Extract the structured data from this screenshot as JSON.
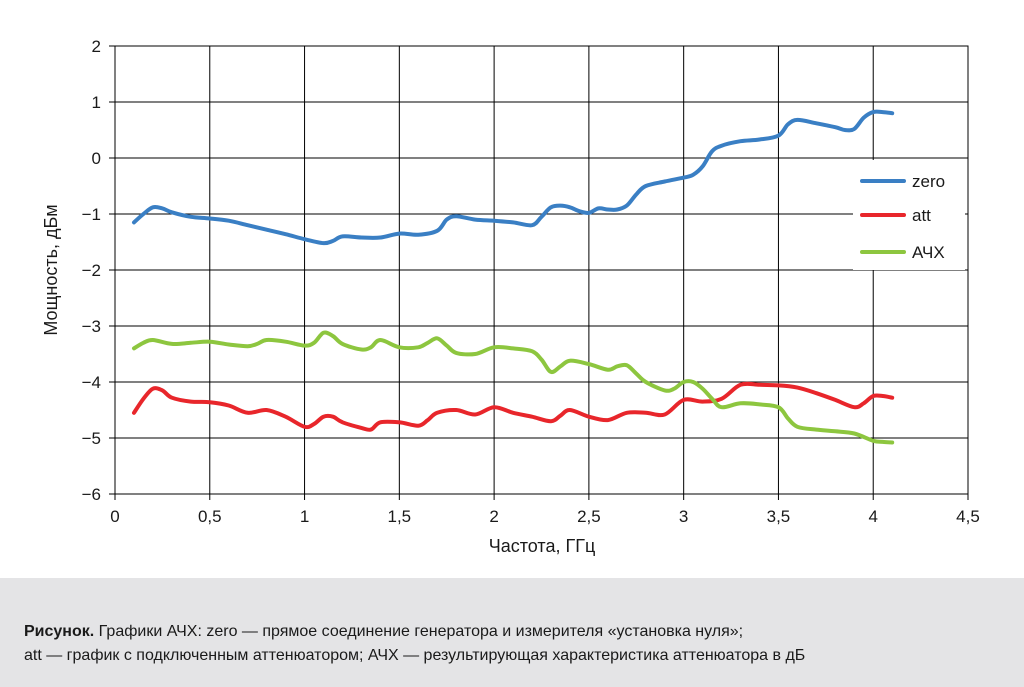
{
  "chart_data": {
    "type": "line",
    "title": "",
    "xlabel": "Частота, ГГц",
    "ylabel": "Мощность, дБм",
    "xlim": [
      0,
      4.5
    ],
    "ylim": [
      -6,
      2
    ],
    "x_ticks": [
      0,
      0.5,
      1,
      1.5,
      2,
      2.5,
      3,
      3.5,
      4,
      4.5
    ],
    "x_tick_labels": [
      "0",
      "0,5",
      "1",
      "1,5",
      "2",
      "2,5",
      "3",
      "3,5",
      "4",
      "4,5"
    ],
    "y_ticks": [
      2,
      1,
      0,
      -1,
      -2,
      -3,
      -4,
      -5,
      -6
    ],
    "y_tick_labels": [
      "2",
      "1",
      "0",
      "−1",
      "−2",
      "−3",
      "−4",
      "−5",
      "−6"
    ],
    "grid": true,
    "legend_position": "right",
    "series": [
      {
        "name": "zero",
        "color": "#3a7fc4",
        "points": [
          [
            0.1,
            -1.15
          ],
          [
            0.15,
            -1.0
          ],
          [
            0.2,
            -0.88
          ],
          [
            0.25,
            -0.9
          ],
          [
            0.3,
            -0.97
          ],
          [
            0.4,
            -1.05
          ],
          [
            0.5,
            -1.08
          ],
          [
            0.6,
            -1.12
          ],
          [
            0.7,
            -1.2
          ],
          [
            0.8,
            -1.28
          ],
          [
            0.9,
            -1.36
          ],
          [
            1.0,
            -1.45
          ],
          [
            1.1,
            -1.52
          ],
          [
            1.15,
            -1.48
          ],
          [
            1.2,
            -1.4
          ],
          [
            1.3,
            -1.42
          ],
          [
            1.4,
            -1.42
          ],
          [
            1.5,
            -1.35
          ],
          [
            1.6,
            -1.37
          ],
          [
            1.7,
            -1.3
          ],
          [
            1.75,
            -1.1
          ],
          [
            1.8,
            -1.04
          ],
          [
            1.9,
            -1.1
          ],
          [
            2.0,
            -1.12
          ],
          [
            2.1,
            -1.15
          ],
          [
            2.2,
            -1.2
          ],
          [
            2.25,
            -1.05
          ],
          [
            2.3,
            -0.88
          ],
          [
            2.35,
            -0.85
          ],
          [
            2.4,
            -0.88
          ],
          [
            2.45,
            -0.95
          ],
          [
            2.5,
            -0.98
          ],
          [
            2.55,
            -0.9
          ],
          [
            2.6,
            -0.92
          ],
          [
            2.65,
            -0.92
          ],
          [
            2.7,
            -0.85
          ],
          [
            2.75,
            -0.65
          ],
          [
            2.8,
            -0.5
          ],
          [
            2.9,
            -0.42
          ],
          [
            3.0,
            -0.35
          ],
          [
            3.05,
            -0.3
          ],
          [
            3.1,
            -0.15
          ],
          [
            3.15,
            0.12
          ],
          [
            3.2,
            0.22
          ],
          [
            3.3,
            0.3
          ],
          [
            3.4,
            0.33
          ],
          [
            3.5,
            0.4
          ],
          [
            3.55,
            0.6
          ],
          [
            3.6,
            0.68
          ],
          [
            3.7,
            0.62
          ],
          [
            3.8,
            0.55
          ],
          [
            3.85,
            0.5
          ],
          [
            3.9,
            0.52
          ],
          [
            3.95,
            0.72
          ],
          [
            4.0,
            0.82
          ],
          [
            4.05,
            0.82
          ],
          [
            4.1,
            0.8
          ]
        ]
      },
      {
        "name": "att",
        "color": "#e8262b",
        "points": [
          [
            0.1,
            -4.55
          ],
          [
            0.15,
            -4.3
          ],
          [
            0.2,
            -4.12
          ],
          [
            0.25,
            -4.15
          ],
          [
            0.3,
            -4.28
          ],
          [
            0.4,
            -4.35
          ],
          [
            0.5,
            -4.36
          ],
          [
            0.6,
            -4.42
          ],
          [
            0.7,
            -4.55
          ],
          [
            0.8,
            -4.5
          ],
          [
            0.9,
            -4.62
          ],
          [
            1.0,
            -4.8
          ],
          [
            1.05,
            -4.75
          ],
          [
            1.1,
            -4.62
          ],
          [
            1.15,
            -4.62
          ],
          [
            1.2,
            -4.72
          ],
          [
            1.3,
            -4.82
          ],
          [
            1.35,
            -4.85
          ],
          [
            1.4,
            -4.72
          ],
          [
            1.5,
            -4.72
          ],
          [
            1.6,
            -4.78
          ],
          [
            1.65,
            -4.68
          ],
          [
            1.7,
            -4.55
          ],
          [
            1.8,
            -4.5
          ],
          [
            1.9,
            -4.58
          ],
          [
            2.0,
            -4.45
          ],
          [
            2.1,
            -4.55
          ],
          [
            2.2,
            -4.62
          ],
          [
            2.3,
            -4.7
          ],
          [
            2.35,
            -4.6
          ],
          [
            2.4,
            -4.5
          ],
          [
            2.5,
            -4.62
          ],
          [
            2.6,
            -4.68
          ],
          [
            2.7,
            -4.55
          ],
          [
            2.8,
            -4.55
          ],
          [
            2.9,
            -4.58
          ],
          [
            3.0,
            -4.32
          ],
          [
            3.1,
            -4.35
          ],
          [
            3.2,
            -4.3
          ],
          [
            3.3,
            -4.05
          ],
          [
            3.4,
            -4.05
          ],
          [
            3.5,
            -4.06
          ],
          [
            3.6,
            -4.1
          ],
          [
            3.7,
            -4.2
          ],
          [
            3.8,
            -4.32
          ],
          [
            3.9,
            -4.45
          ],
          [
            3.95,
            -4.38
          ],
          [
            4.0,
            -4.25
          ],
          [
            4.05,
            -4.25
          ],
          [
            4.1,
            -4.28
          ]
        ]
      },
      {
        "name": "АЧХ",
        "color": "#8dc63f",
        "points": [
          [
            0.1,
            -3.4
          ],
          [
            0.15,
            -3.3
          ],
          [
            0.2,
            -3.25
          ],
          [
            0.3,
            -3.32
          ],
          [
            0.4,
            -3.3
          ],
          [
            0.5,
            -3.28
          ],
          [
            0.6,
            -3.33
          ],
          [
            0.7,
            -3.36
          ],
          [
            0.75,
            -3.32
          ],
          [
            0.8,
            -3.25
          ],
          [
            0.9,
            -3.28
          ],
          [
            1.0,
            -3.35
          ],
          [
            1.05,
            -3.3
          ],
          [
            1.1,
            -3.12
          ],
          [
            1.15,
            -3.18
          ],
          [
            1.2,
            -3.32
          ],
          [
            1.3,
            -3.42
          ],
          [
            1.35,
            -3.38
          ],
          [
            1.4,
            -3.25
          ],
          [
            1.5,
            -3.38
          ],
          [
            1.6,
            -3.38
          ],
          [
            1.65,
            -3.3
          ],
          [
            1.7,
            -3.22
          ],
          [
            1.75,
            -3.35
          ],
          [
            1.8,
            -3.48
          ],
          [
            1.9,
            -3.5
          ],
          [
            2.0,
            -3.38
          ],
          [
            2.1,
            -3.4
          ],
          [
            2.2,
            -3.45
          ],
          [
            2.25,
            -3.6
          ],
          [
            2.3,
            -3.82
          ],
          [
            2.35,
            -3.72
          ],
          [
            2.4,
            -3.62
          ],
          [
            2.5,
            -3.68
          ],
          [
            2.6,
            -3.78
          ],
          [
            2.65,
            -3.72
          ],
          [
            2.7,
            -3.7
          ],
          [
            2.75,
            -3.85
          ],
          [
            2.8,
            -4.0
          ],
          [
            2.9,
            -4.15
          ],
          [
            2.95,
            -4.12
          ],
          [
            3.0,
            -4.0
          ],
          [
            3.05,
            -4.0
          ],
          [
            3.1,
            -4.12
          ],
          [
            3.15,
            -4.3
          ],
          [
            3.2,
            -4.45
          ],
          [
            3.3,
            -4.38
          ],
          [
            3.4,
            -4.4
          ],
          [
            3.5,
            -4.45
          ],
          [
            3.55,
            -4.65
          ],
          [
            3.6,
            -4.8
          ],
          [
            3.7,
            -4.85
          ],
          [
            3.8,
            -4.88
          ],
          [
            3.9,
            -4.92
          ],
          [
            4.0,
            -5.05
          ],
          [
            4.05,
            -5.07
          ],
          [
            4.1,
            -5.08
          ]
        ]
      }
    ]
  },
  "caption": {
    "lead": "Рисунок.",
    "line1_rest": " Графики АЧХ: zero — прямое соединение генератора и измерителя «установка нуля»;",
    "line2": "att — график с подключенным аттенюатором; АЧХ — результирующая характеристика аттенюатора в дБ"
  }
}
